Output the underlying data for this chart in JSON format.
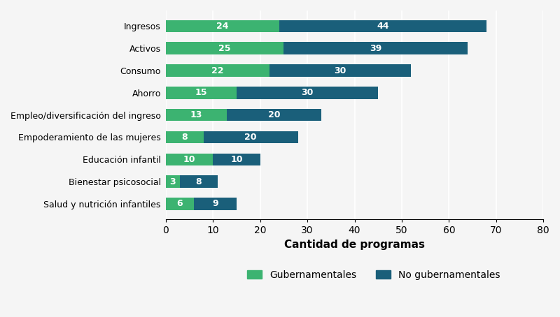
{
  "categories": [
    "Ingresos",
    "Activos",
    "Consumo",
    "Ahorro",
    "Empleo/diversificación del ingreso",
    "Empoderamiento de las mujeres",
    "Educación infantil",
    "Bienestar psicosocial",
    "Salud y nutrición infantiles"
  ],
  "gubernamentales": [
    24,
    25,
    22,
    15,
    13,
    8,
    10,
    3,
    6
  ],
  "no_gubernamentales": [
    44,
    39,
    30,
    30,
    20,
    20,
    10,
    8,
    9
  ],
  "color_gub": "#3cb371",
  "color_no_gub": "#1a5f7a",
  "xlabel": "Cantidad de programas",
  "xlim": [
    0,
    80
  ],
  "xticks": [
    0,
    10,
    20,
    30,
    40,
    50,
    60,
    70,
    80
  ],
  "legend_gub": "Gubernamentales",
  "legend_no_gub": "No gubernamentales",
  "background_color": "#f5f5f5",
  "bar_height": 0.55,
  "label_fontsize": 9,
  "xlabel_fontsize": 11,
  "legend_fontsize": 10,
  "ytick_fontsize": 9
}
